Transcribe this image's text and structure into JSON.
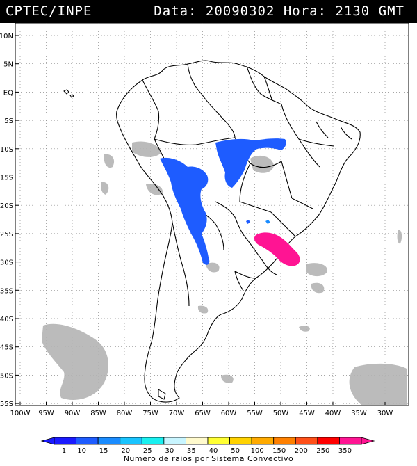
{
  "header": {
    "source": "CPTEC/INPE",
    "datetime": "Data: 20090302 Hora: 2130 GMT"
  },
  "map": {
    "lat_labels": [
      "10N",
      "5N",
      "EQ",
      "5S",
      "10S",
      "15S",
      "20S",
      "25S",
      "30S",
      "35S",
      "40S",
      "45S",
      "50S",
      "55S"
    ],
    "lon_labels": [
      "100W",
      "95W",
      "90W",
      "85W",
      "80W",
      "75W",
      "70W",
      "65W",
      "60W",
      "55W",
      "50W",
      "45W",
      "40W",
      "35W",
      "30W"
    ],
    "lightning_regions": [
      {
        "name": "bolivia-west-amazon",
        "class": "10"
      },
      {
        "name": "mato-grosso",
        "class": "10"
      },
      {
        "name": "paraguay-argentina",
        "class": "10"
      },
      {
        "name": "southern-brazil",
        "class": "350"
      }
    ]
  },
  "legend": {
    "labels": [
      "1",
      "10",
      "15",
      "20",
      "25",
      "30",
      "35",
      "40",
      "50",
      "100",
      "150",
      "200",
      "250",
      "350"
    ],
    "colors": [
      "#1a1aff",
      "#1e5cff",
      "#1a8cff",
      "#19c4ff",
      "#19f0f0",
      "#c8f5ff",
      "#fffacd",
      "#ffff33",
      "#ffd200",
      "#ffaa00",
      "#ff8000",
      "#ff5019",
      "#ff0000",
      "#ff1493"
    ],
    "title": "Numero de raios por Sistema Convectivo"
  }
}
